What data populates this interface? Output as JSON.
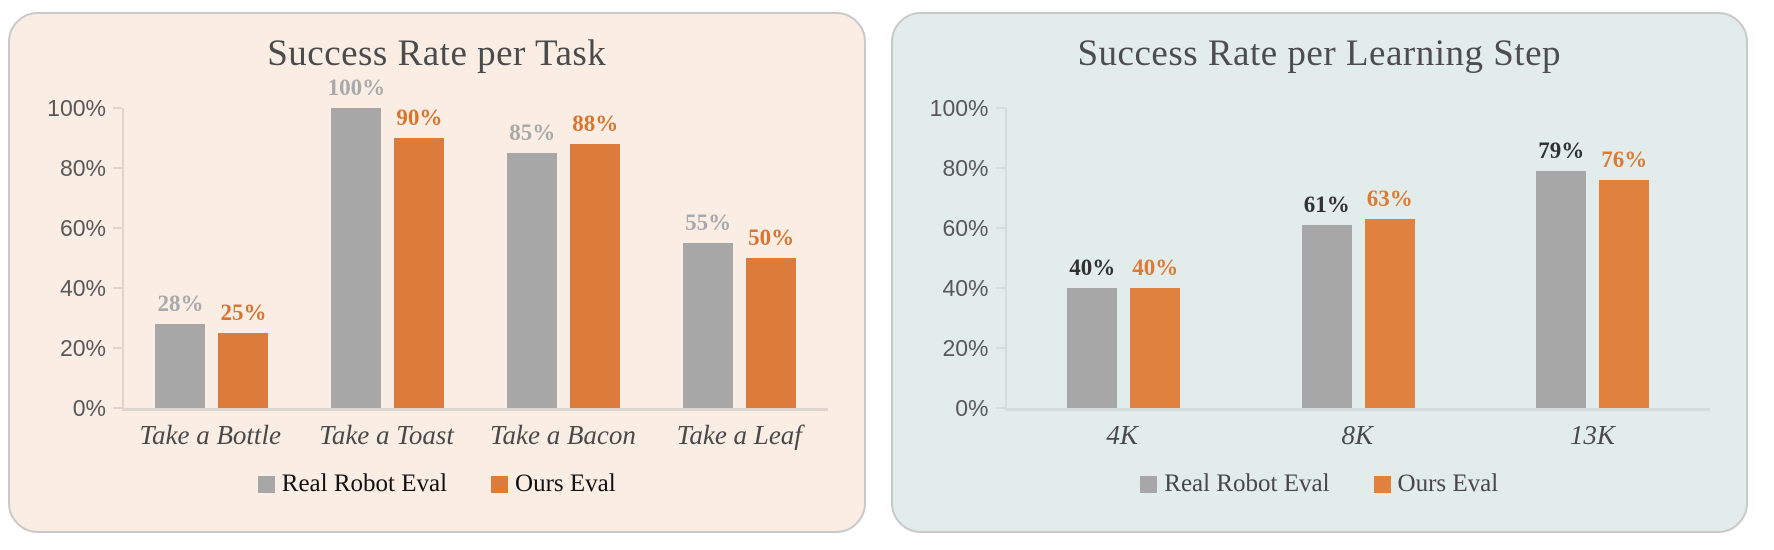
{
  "page": {
    "background": "#ffffff"
  },
  "chart_data": [
    {
      "type": "bar",
      "title": "Success Rate per Task",
      "categories": [
        "Take a Bottle",
        "Take a Toast",
        "Take a Bacon",
        "Take a Leaf"
      ],
      "series": [
        {
          "name": "Real Robot Eval",
          "values": [
            28,
            100,
            85,
            55
          ],
          "labels": [
            "28%",
            "100%",
            "85%",
            "55%"
          ],
          "bar_color": "#a7a7a7",
          "label_color": "#a9a9a9"
        },
        {
          "name": "Ours Eval",
          "values": [
            25,
            90,
            88,
            50
          ],
          "labels": [
            "25%",
            "90%",
            "88%",
            "50%"
          ],
          "bar_color": "#dd7c3a",
          "label_color": "#d9752f"
        }
      ],
      "y_ticks": [
        "100%",
        "80%",
        "60%",
        "40%",
        "20%",
        "0%"
      ],
      "ylim": [
        0,
        100
      ],
      "grid": "off",
      "legend_position": "bottom",
      "style": {
        "panel_bg": "#faede4",
        "title_color": "#4b4b4b",
        "ytick_color": "#585858",
        "category_color": "#494949",
        "axis_color": "#ddd5ce",
        "legend_text_color": "#111111"
      }
    },
    {
      "type": "bar",
      "title": "Success Rate per Learning Step",
      "categories": [
        "4K",
        "8K",
        "13K"
      ],
      "series": [
        {
          "name": "Real Robot Eval",
          "values": [
            40,
            61,
            79
          ],
          "labels": [
            "40%",
            "61%",
            "79%"
          ],
          "bar_color": "#a7a7a7",
          "label_color": "#313131"
        },
        {
          "name": "Ours Eval",
          "values": [
            40,
            63,
            76
          ],
          "labels": [
            "40%",
            "63%",
            "76%"
          ],
          "bar_color": "#e0813d",
          "label_color": "#dd7a33"
        }
      ],
      "y_ticks": [
        "100%",
        "80%",
        "60%",
        "40%",
        "20%",
        "0%"
      ],
      "ylim": [
        0,
        100
      ],
      "grid": "off",
      "legend_position": "bottom",
      "style": {
        "panel_bg": "#e2edeb",
        "title_color": "#4d4d4d",
        "ytick_color": "#585858",
        "category_color": "#494949",
        "axis_color": "#d2dddb",
        "legend_text_color": "#474747"
      }
    }
  ]
}
